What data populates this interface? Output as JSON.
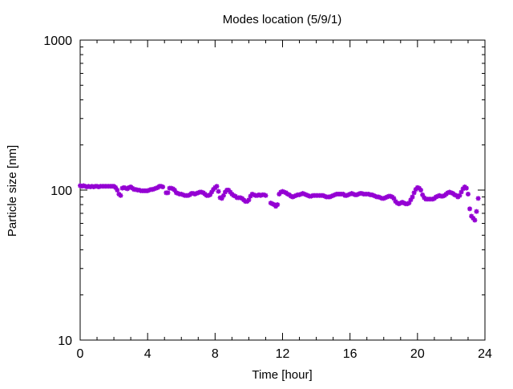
{
  "chart_data": {
    "type": "scatter",
    "title": "Modes location (5/9/1)",
    "xlabel": "Time [hour]",
    "ylabel": "Particle size [nm]",
    "xlim": [
      0,
      24
    ],
    "ylim": [
      10,
      1000
    ],
    "yscale": "log",
    "grid": false,
    "xticks": [
      0,
      4,
      8,
      12,
      16,
      20,
      24
    ],
    "xtick_labels": [
      "0",
      "4",
      "8",
      "12",
      "16",
      "20",
      "24"
    ],
    "yticks": [
      10,
      100,
      1000
    ],
    "ytick_labels": [
      "10",
      "100",
      "1000"
    ],
    "marker_color": "#9400d3",
    "series": [
      {
        "points": [
          [
            0.0,
            107
          ],
          [
            0.1,
            106
          ],
          [
            0.2,
            107
          ],
          [
            0.3,
            106
          ],
          [
            0.4,
            105
          ],
          [
            0.5,
            106
          ],
          [
            0.6,
            105
          ],
          [
            0.7,
            106
          ],
          [
            0.8,
            105
          ],
          [
            0.9,
            106
          ],
          [
            1.0,
            106
          ],
          [
            1.1,
            105
          ],
          [
            1.2,
            106
          ],
          [
            1.3,
            106
          ],
          [
            1.4,
            106
          ],
          [
            1.5,
            106
          ],
          [
            1.6,
            106
          ],
          [
            1.7,
            106
          ],
          [
            1.8,
            106
          ],
          [
            1.9,
            106
          ],
          [
            2.0,
            106
          ],
          [
            2.1,
            104
          ],
          [
            2.2,
            100
          ],
          [
            2.3,
            94
          ],
          [
            2.4,
            92
          ],
          [
            2.5,
            103
          ],
          [
            2.6,
            104
          ],
          [
            2.7,
            103
          ],
          [
            2.8,
            102
          ],
          [
            2.9,
            104
          ],
          [
            3.0,
            105
          ],
          [
            3.1,
            103
          ],
          [
            3.2,
            101
          ],
          [
            3.3,
            101
          ],
          [
            3.4,
            100
          ],
          [
            3.5,
            100
          ],
          [
            3.6,
            99
          ],
          [
            3.7,
            99
          ],
          [
            3.8,
            99
          ],
          [
            3.9,
            99
          ],
          [
            4.0,
            99
          ],
          [
            4.1,
            100
          ],
          [
            4.2,
            101
          ],
          [
            4.3,
            101
          ],
          [
            4.4,
            102
          ],
          [
            4.5,
            103
          ],
          [
            4.6,
            104
          ],
          [
            4.7,
            106
          ],
          [
            4.8,
            106
          ],
          [
            4.9,
            105
          ],
          [
            5.1,
            96
          ],
          [
            5.2,
            96
          ],
          [
            5.3,
            103
          ],
          [
            5.4,
            103
          ],
          [
            5.5,
            102
          ],
          [
            5.6,
            100
          ],
          [
            5.7,
            96
          ],
          [
            5.8,
            95
          ],
          [
            5.9,
            94
          ],
          [
            6.0,
            94
          ],
          [
            6.1,
            93
          ],
          [
            6.2,
            92
          ],
          [
            6.3,
            92
          ],
          [
            6.4,
            92
          ],
          [
            6.5,
            93
          ],
          [
            6.6,
            95
          ],
          [
            6.7,
            95
          ],
          [
            6.8,
            94
          ],
          [
            6.9,
            95
          ],
          [
            7.0,
            96
          ],
          [
            7.1,
            97
          ],
          [
            7.2,
            97
          ],
          [
            7.3,
            96
          ],
          [
            7.4,
            94
          ],
          [
            7.5,
            92
          ],
          [
            7.6,
            92
          ],
          [
            7.7,
            93
          ],
          [
            7.8,
            97
          ],
          [
            7.9,
            101
          ],
          [
            8.0,
            104
          ],
          [
            8.1,
            106
          ],
          [
            8.2,
            98
          ],
          [
            8.3,
            89
          ],
          [
            8.4,
            88
          ],
          [
            8.5,
            92
          ],
          [
            8.6,
            97
          ],
          [
            8.7,
            100
          ],
          [
            8.8,
            100
          ],
          [
            8.9,
            97
          ],
          [
            9.0,
            94
          ],
          [
            9.1,
            92
          ],
          [
            9.2,
            91
          ],
          [
            9.3,
            89
          ],
          [
            9.4,
            89
          ],
          [
            9.5,
            89
          ],
          [
            9.6,
            88
          ],
          [
            9.7,
            86
          ],
          [
            9.8,
            84
          ],
          [
            9.9,
            84
          ],
          [
            10.0,
            86
          ],
          [
            10.1,
            91
          ],
          [
            10.2,
            94
          ],
          [
            10.3,
            93
          ],
          [
            10.4,
            92
          ],
          [
            10.5,
            92
          ],
          [
            10.6,
            93
          ],
          [
            10.7,
            92
          ],
          [
            10.8,
            93
          ],
          [
            10.9,
            93
          ],
          [
            11.0,
            92
          ],
          [
            11.3,
            82
          ],
          [
            11.4,
            81
          ],
          [
            11.5,
            80
          ],
          [
            11.6,
            78
          ],
          [
            11.7,
            80
          ],
          [
            11.8,
            94
          ],
          [
            11.9,
            97
          ],
          [
            12.0,
            98
          ],
          [
            12.1,
            97
          ],
          [
            12.2,
            96
          ],
          [
            12.3,
            94
          ],
          [
            12.4,
            93
          ],
          [
            12.5,
            91
          ],
          [
            12.6,
            90
          ],
          [
            12.7,
            91
          ],
          [
            12.8,
            92
          ],
          [
            12.9,
            93
          ],
          [
            13.0,
            93
          ],
          [
            13.1,
            94
          ],
          [
            13.2,
            95
          ],
          [
            13.3,
            94
          ],
          [
            13.4,
            93
          ],
          [
            13.5,
            92
          ],
          [
            13.6,
            91
          ],
          [
            13.7,
            91
          ],
          [
            13.8,
            92
          ],
          [
            13.9,
            92
          ],
          [
            14.0,
            92
          ],
          [
            14.1,
            92
          ],
          [
            14.2,
            92
          ],
          [
            14.3,
            92
          ],
          [
            14.4,
            92
          ],
          [
            14.5,
            91
          ],
          [
            14.6,
            90
          ],
          [
            14.7,
            90
          ],
          [
            14.8,
            90
          ],
          [
            14.9,
            91
          ],
          [
            15.0,
            92
          ],
          [
            15.1,
            93
          ],
          [
            15.2,
            94
          ],
          [
            15.3,
            94
          ],
          [
            15.4,
            94
          ],
          [
            15.5,
            94
          ],
          [
            15.6,
            94
          ],
          [
            15.7,
            92
          ],
          [
            15.8,
            92
          ],
          [
            15.9,
            93
          ],
          [
            16.0,
            94
          ],
          [
            16.1,
            95
          ],
          [
            16.2,
            94
          ],
          [
            16.3,
            93
          ],
          [
            16.4,
            93
          ],
          [
            16.5,
            94
          ],
          [
            16.6,
            95
          ],
          [
            16.7,
            95
          ],
          [
            16.8,
            94
          ],
          [
            16.9,
            94
          ],
          [
            17.0,
            94
          ],
          [
            17.1,
            94
          ],
          [
            17.2,
            93
          ],
          [
            17.3,
            93
          ],
          [
            17.4,
            92
          ],
          [
            17.5,
            91
          ],
          [
            17.6,
            90
          ],
          [
            17.7,
            90
          ],
          [
            17.8,
            89
          ],
          [
            17.9,
            88
          ],
          [
            18.0,
            88
          ],
          [
            18.1,
            89
          ],
          [
            18.2,
            90
          ],
          [
            18.3,
            91
          ],
          [
            18.4,
            91
          ],
          [
            18.5,
            90
          ],
          [
            18.6,
            88
          ],
          [
            18.7,
            84
          ],
          [
            18.8,
            82
          ],
          [
            18.9,
            81
          ],
          [
            19.0,
            82
          ],
          [
            19.1,
            83
          ],
          [
            19.2,
            82
          ],
          [
            19.3,
            81
          ],
          [
            19.4,
            81
          ],
          [
            19.5,
            82
          ],
          [
            19.6,
            86
          ],
          [
            19.7,
            90
          ],
          [
            19.8,
            96
          ],
          [
            19.9,
            101
          ],
          [
            20.0,
            104
          ],
          [
            20.1,
            103
          ],
          [
            20.2,
            100
          ],
          [
            20.3,
            93
          ],
          [
            20.4,
            89
          ],
          [
            20.5,
            87
          ],
          [
            20.6,
            87
          ],
          [
            20.7,
            87
          ],
          [
            20.8,
            87
          ],
          [
            20.9,
            87
          ],
          [
            21.0,
            88
          ],
          [
            21.1,
            90
          ],
          [
            21.2,
            91
          ],
          [
            21.3,
            92
          ],
          [
            21.4,
            91
          ],
          [
            21.5,
            91
          ],
          [
            21.6,
            92
          ],
          [
            21.7,
            94
          ],
          [
            21.8,
            96
          ],
          [
            21.9,
            97
          ],
          [
            22.0,
            96
          ],
          [
            22.1,
            95
          ],
          [
            22.2,
            93
          ],
          [
            22.3,
            92
          ],
          [
            22.4,
            90
          ],
          [
            22.5,
            92
          ],
          [
            22.6,
            97
          ],
          [
            22.7,
            102
          ],
          [
            22.8,
            105
          ],
          [
            22.9,
            103
          ],
          [
            23.0,
            94
          ],
          [
            23.1,
            75
          ],
          [
            23.2,
            67
          ],
          [
            23.3,
            65
          ],
          [
            23.4,
            63
          ],
          [
            23.5,
            72
          ],
          [
            23.6,
            88
          ]
        ]
      }
    ]
  }
}
